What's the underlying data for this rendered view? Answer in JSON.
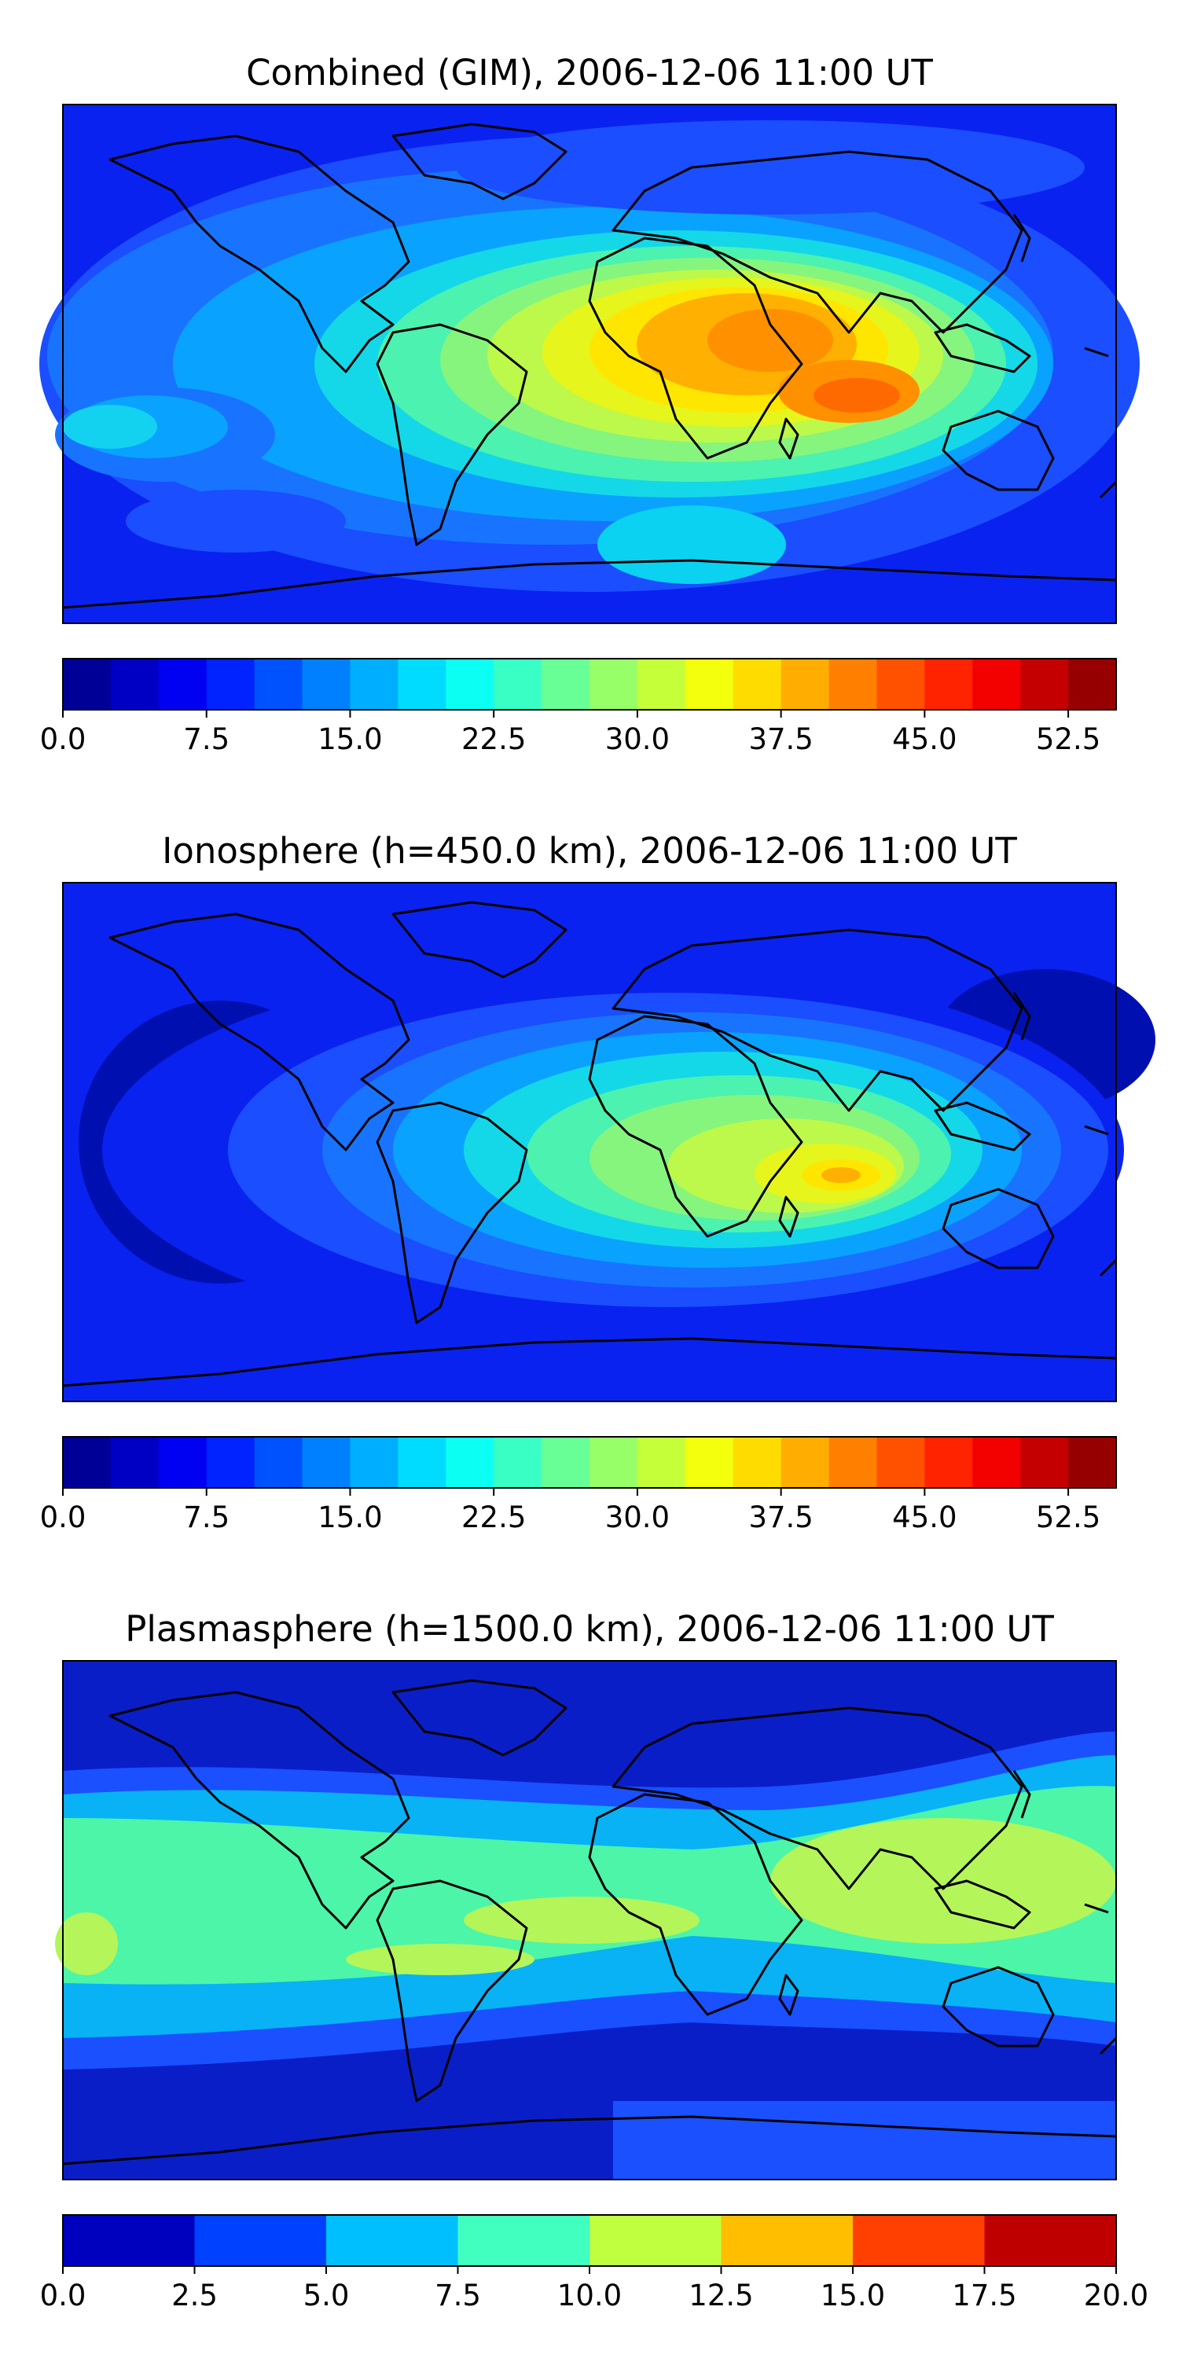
{
  "panels": [
    {
      "title": "Combined (GIM), 2006-12-06 11:00 UT",
      "variant": "combined",
      "colorbar": {
        "vmin": 0,
        "vmax": 55,
        "levels": 22,
        "ticks": [
          "0.0",
          "7.5",
          "15.0",
          "22.5",
          "30.0",
          "37.5",
          "45.0",
          "52.5"
        ],
        "tick_values": [
          0,
          7.5,
          15,
          22.5,
          30,
          37.5,
          45,
          52.5
        ]
      }
    },
    {
      "title": "Ionosphere  (h=450.0 km), 2006-12-06 11:00 UT",
      "variant": "ionosphere",
      "colorbar": {
        "vmin": 0,
        "vmax": 55,
        "levels": 22,
        "ticks": [
          "0.0",
          "7.5",
          "15.0",
          "22.5",
          "30.0",
          "37.5",
          "45.0",
          "52.5"
        ],
        "tick_values": [
          0,
          7.5,
          15,
          22.5,
          30,
          37.5,
          45,
          52.5
        ]
      }
    },
    {
      "title": "Plasmasphere (h=1500.0 km), 2006-12-06 11:00 UT",
      "variant": "plasmasphere",
      "colorbar": {
        "vmin": 0,
        "vmax": 20,
        "levels": 8,
        "ticks": [
          "0.0",
          "2.5",
          "5.0",
          "7.5",
          "10.0",
          "12.5",
          "15.0",
          "17.5",
          "20.0"
        ],
        "tick_values": [
          0,
          2.5,
          5,
          7.5,
          10,
          12.5,
          15,
          17.5,
          20
        ]
      }
    }
  ]
}
